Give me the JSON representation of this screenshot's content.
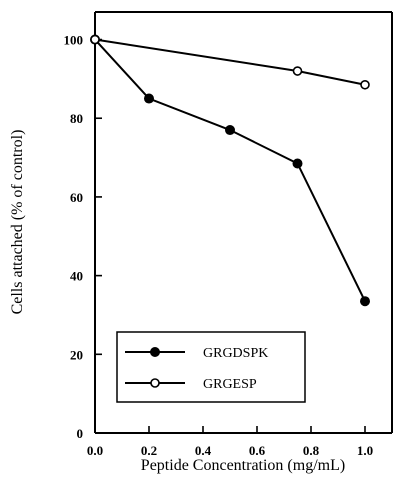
{
  "chart_data": {
    "type": "line",
    "title": "",
    "xlabel": "Peptide Concentration (mg/mL)",
    "ylabel": "Cells attached (% of control)",
    "xlim": [
      0,
      1.1
    ],
    "ylim": [
      0,
      107
    ],
    "xticks": [
      0.0,
      0.2,
      0.4,
      0.6,
      0.8,
      1.0
    ],
    "xtick_labels": [
      "0.0",
      "0.2",
      "0.4",
      "0.6",
      "0.8",
      "1.0"
    ],
    "yticks": [
      0,
      20,
      40,
      60,
      80,
      100
    ],
    "ytick_labels": [
      "0",
      "20",
      "40",
      "60",
      "80",
      "100"
    ],
    "grid": false,
    "legend_position": "bottom-left",
    "series": [
      {
        "name": "GRGDSPK",
        "marker": "filled-circle",
        "x": [
          0,
          0.2,
          0.5,
          0.75,
          1.0
        ],
        "y": [
          100,
          85,
          77,
          68.5,
          33.5
        ]
      },
      {
        "name": "GRGESP",
        "marker": "open-circle",
        "x": [
          0,
          0.75,
          1.0
        ],
        "y": [
          100,
          92,
          88.5
        ]
      }
    ]
  }
}
